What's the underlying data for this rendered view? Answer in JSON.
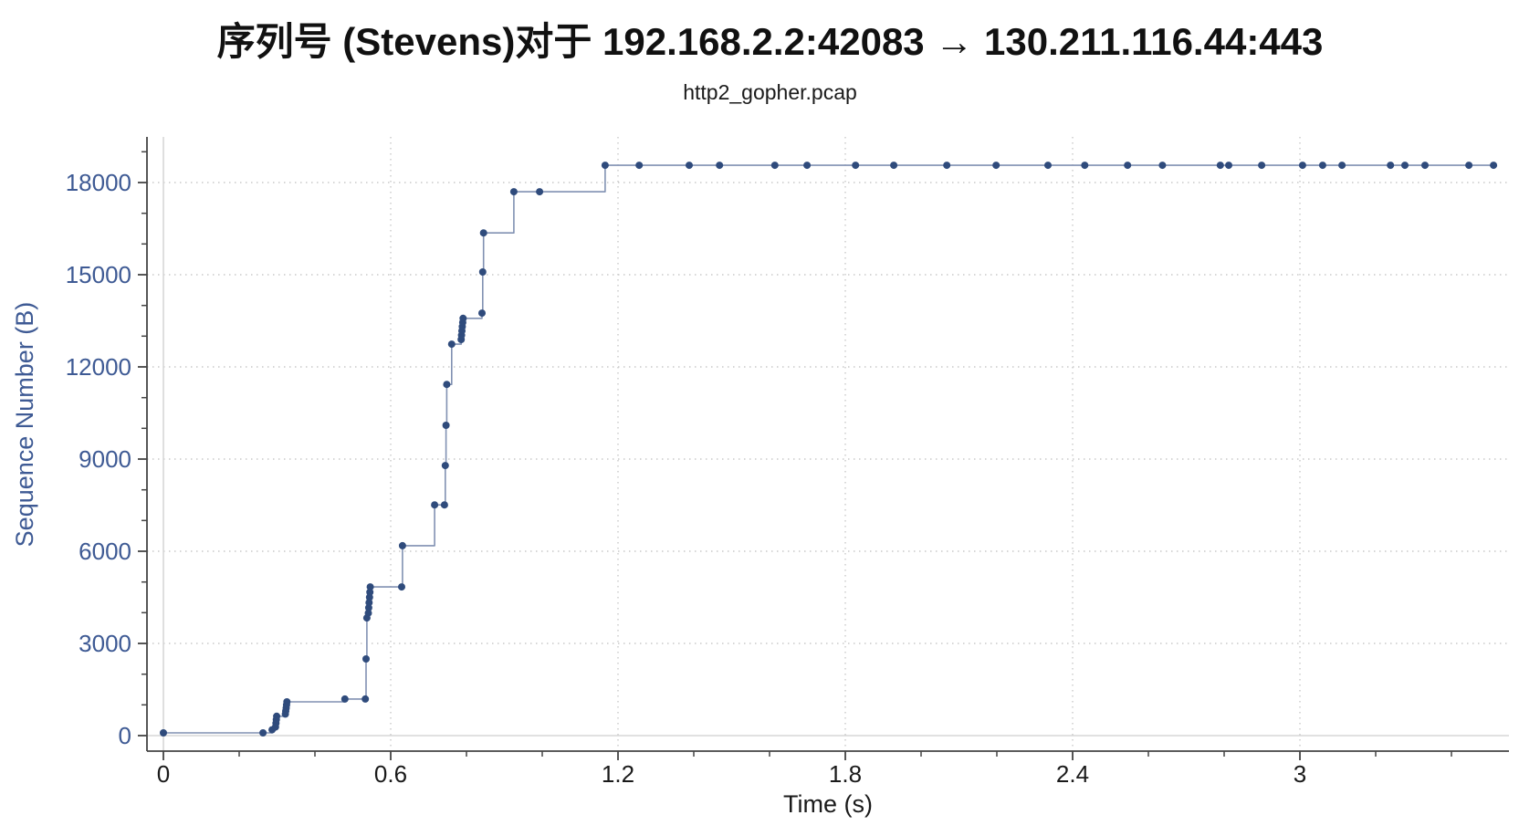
{
  "figure": {
    "title": "序列号 (Stevens)对于 192.168.2.2:42083 → 130.211.116.44:443",
    "subtitle": "http2_gopher.pcap"
  },
  "chart_data": {
    "type": "line",
    "subtype": "tcp-stevens-sequence-graph (hv step line with dot markers)",
    "title": "序列号 (Stevens)对于 192.168.2.2:42083 → 130.211.116.44:443",
    "subtitle": "http2_gopher.pcap",
    "xlabel": "Time (s)",
    "ylabel": "Sequence Number (B)",
    "xlim": [
      -0.045,
      3.55
    ],
    "ylim": [
      -500,
      19450
    ],
    "x_major_ticks": [
      0,
      0.6,
      1.2,
      1.8,
      2.4,
      3
    ],
    "x_tick_labels": [
      "0",
      "0.6",
      "1.2",
      "1.8",
      "2.4",
      "3"
    ],
    "x_minor_ticks": [
      0.2,
      0.4,
      0.8,
      1.0,
      1.4,
      1.6,
      2.0,
      2.2,
      2.6,
      2.8,
      3.2,
      3.4
    ],
    "y_major_ticks": [
      0,
      3000,
      6000,
      9000,
      12000,
      15000,
      18000
    ],
    "y_tick_labels": [
      "0",
      "3000",
      "6000",
      "9000",
      "12000",
      "15000",
      "18000"
    ],
    "y_minor_ticks": [
      1000,
      2000,
      4000,
      5000,
      7000,
      8000,
      10000,
      11000,
      13000,
      14000,
      16000,
      17000,
      19000
    ],
    "grid": {
      "major_gridlines": "dotted",
      "zero_lines": "solid light gray at t=0 and seq=0",
      "frame": "left and bottom axes only"
    },
    "legend": "none",
    "series": [
      {
        "name": "sequence-number-trace",
        "points": [
          [
            0.0,
            90
          ],
          [
            0.263,
            90
          ],
          [
            0.287,
            190
          ],
          [
            0.296,
            280
          ],
          [
            0.297,
            400
          ],
          [
            0.298,
            520
          ],
          [
            0.299,
            630
          ],
          [
            0.322,
            700
          ],
          [
            0.323,
            800
          ],
          [
            0.324,
            900
          ],
          [
            0.325,
            1000
          ],
          [
            0.326,
            1100
          ],
          [
            0.479,
            1190
          ],
          [
            0.533,
            1190
          ],
          [
            0.535,
            2495
          ],
          [
            0.537,
            3830
          ],
          [
            0.541,
            3990
          ],
          [
            0.542,
            4160
          ],
          [
            0.543,
            4330
          ],
          [
            0.544,
            4500
          ],
          [
            0.545,
            4670
          ],
          [
            0.546,
            4840
          ],
          [
            0.629,
            4840
          ],
          [
            0.631,
            6180
          ],
          [
            0.716,
            7510
          ],
          [
            0.742,
            7510
          ],
          [
            0.744,
            8790
          ],
          [
            0.746,
            10100
          ],
          [
            0.748,
            11430
          ],
          [
            0.761,
            12740
          ],
          [
            0.786,
            12890
          ],
          [
            0.787,
            13030
          ],
          [
            0.788,
            13170
          ],
          [
            0.789,
            13310
          ],
          [
            0.79,
            13450
          ],
          [
            0.791,
            13580
          ],
          [
            0.841,
            13750
          ],
          [
            0.843,
            15090
          ],
          [
            0.845,
            16360
          ],
          [
            0.925,
            17700
          ],
          [
            0.993,
            17700
          ],
          [
            1.166,
            18560
          ],
          [
            1.256,
            18560
          ],
          [
            1.388,
            18560
          ],
          [
            1.468,
            18560
          ],
          [
            1.614,
            18560
          ],
          [
            1.699,
            18560
          ],
          [
            1.827,
            18560
          ],
          [
            1.928,
            18560
          ],
          [
            2.068,
            18560
          ],
          [
            2.198,
            18560
          ],
          [
            2.335,
            18560
          ],
          [
            2.432,
            18560
          ],
          [
            2.545,
            18560
          ],
          [
            2.637,
            18560
          ],
          [
            2.79,
            18560
          ],
          [
            2.812,
            18560
          ],
          [
            2.899,
            18560
          ],
          [
            3.007,
            18560
          ],
          [
            3.06,
            18560
          ],
          [
            3.111,
            18560
          ],
          [
            3.239,
            18560
          ],
          [
            3.277,
            18560
          ],
          [
            3.33,
            18560
          ],
          [
            3.446,
            18560
          ],
          [
            3.511,
            18560
          ]
        ]
      }
    ],
    "colors": {
      "marker": "#2f4b7c",
      "line": "#8191b2",
      "y_axis_text": "#3e5a94",
      "x_axis_text": "#1a1a1a",
      "title_text": "#111111",
      "grid": "#c9c9c9",
      "zero_line": "#d7d7d7",
      "axis": "#444444",
      "background": "#ffffff"
    }
  }
}
